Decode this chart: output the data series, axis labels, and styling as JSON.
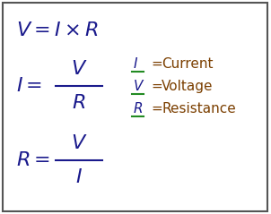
{
  "bg_color": "#ffffff",
  "box_color": "#ffffff",
  "border_color": "#555555",
  "text_color": "#1a1a8c",
  "legend_text_color": "#7B3F00",
  "underline_color": "#228B22",
  "legend": [
    [
      "I",
      "Current"
    ],
    [
      "V",
      "Voltage"
    ],
    [
      "R",
      "Resistance"
    ]
  ],
  "fontsize_main": 16,
  "fontsize_legend": 11
}
